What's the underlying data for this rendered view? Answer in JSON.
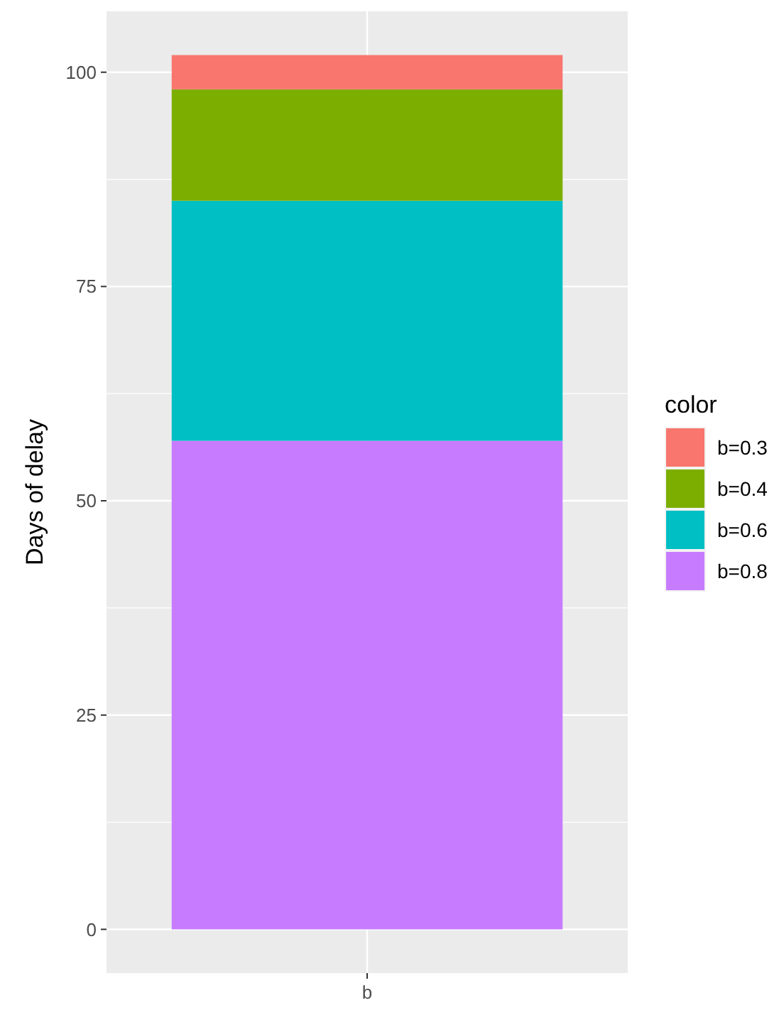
{
  "chart_data": {
    "type": "bar",
    "stacked": true,
    "ylabel": "Days of delay",
    "legend_title": "color",
    "categories": [
      "b"
    ],
    "series": [
      {
        "name": "b=0.8",
        "color": "#c77cff",
        "values": [
          57
        ]
      },
      {
        "name": "b=0.6",
        "color": "#00bfc4",
        "values": [
          28
        ]
      },
      {
        "name": "b=0.4",
        "color": "#7cae00",
        "values": [
          13
        ]
      },
      {
        "name": "b=0.3",
        "color": "#f8766d",
        "values": [
          4
        ]
      }
    ],
    "ylim": [
      -5.1,
      107.1
    ],
    "yticks": [
      0,
      25,
      50,
      75,
      100
    ],
    "grid": true,
    "legend": "right"
  }
}
